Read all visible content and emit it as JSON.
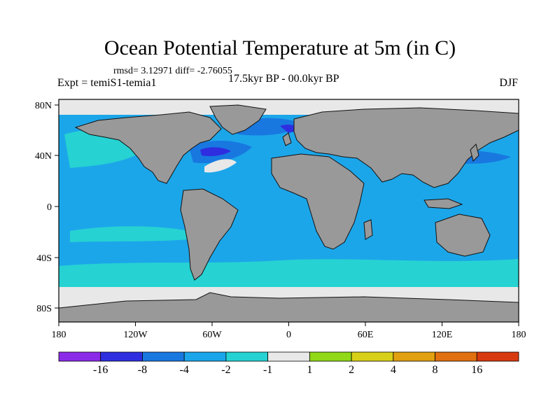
{
  "title": "Ocean Potential Temperature at 5m (in C)",
  "stats": "rmsd= 3.12971 diff= -2.76055",
  "left_label": "Expt = temiS1-temia1",
  "center_label": "17.5kyr BP - 00.0kyr BP",
  "right_label": "DJF",
  "lat_labels": [
    "80N",
    "40N",
    "0",
    "40S",
    "80S"
  ],
  "lon_labels": [
    "180",
    "120W",
    "60W",
    "0",
    "60E",
    "120E",
    "180"
  ],
  "colorbar": {
    "bins": [
      "#8b2be8",
      "#2e2ee0",
      "#1878e0",
      "#1ca6ea",
      "#26d2d2",
      "#e8e8e8",
      "#90d818",
      "#d8d018",
      "#e0a010",
      "#e07010",
      "#d83a10"
    ],
    "labels": [
      "-16",
      "-8",
      "-4",
      "-2",
      "-1",
      "1",
      "2",
      "4",
      "8",
      "16"
    ]
  },
  "colors": {
    "land": "#999999",
    "ocean_base": "#1ca6ea",
    "ice": "#e8e8e8"
  }
}
